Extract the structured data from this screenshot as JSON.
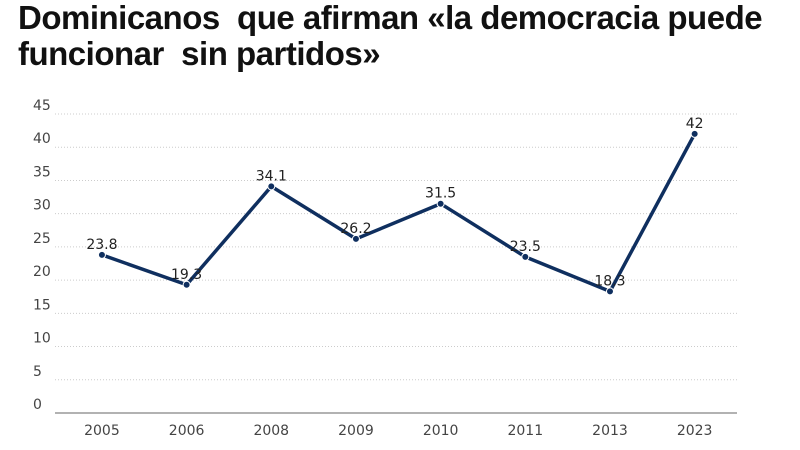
{
  "chart_data": {
    "type": "line",
    "title": "Dominicanos  que afirman «la democracia puede funcionar  sin partidos»",
    "categories": [
      "2005",
      "2006",
      "2008",
      "2009",
      "2010",
      "2011",
      "2013",
      "2023"
    ],
    "values": [
      23.8,
      19.3,
      34.1,
      26.2,
      31.5,
      23.5,
      18.3,
      42
    ],
    "color": "#0f2f5f",
    "ylim": [
      0,
      45
    ],
    "yticks": [
      0,
      5,
      10,
      15,
      20,
      25,
      30,
      35,
      40,
      45
    ],
    "grid": true
  }
}
